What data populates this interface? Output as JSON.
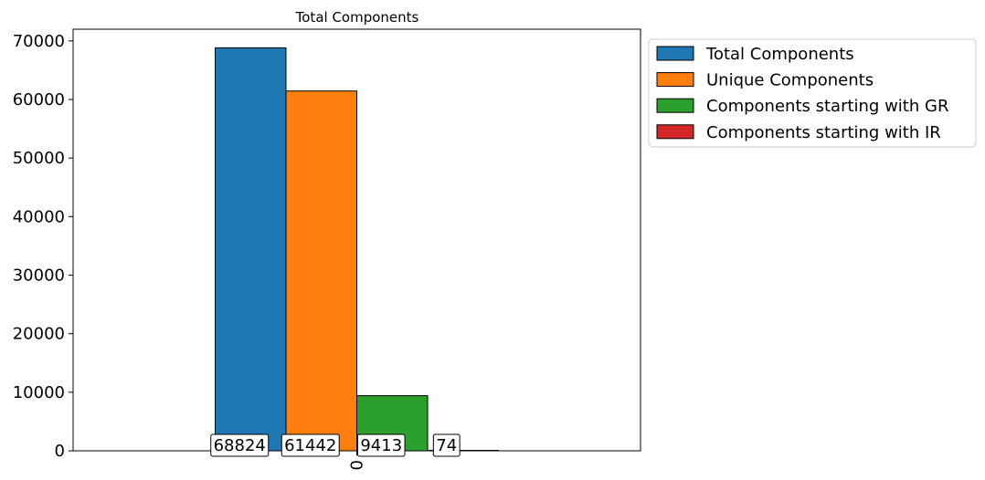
{
  "chart_data": {
    "type": "bar",
    "title": "Total Components",
    "xlabel": "",
    "ylabel": "",
    "categories": [
      "0"
    ],
    "series": [
      {
        "name": "Total Components",
        "values": [
          68824
        ],
        "color": "#1f77b4"
      },
      {
        "name": "Unique Components",
        "values": [
          61442
        ],
        "color": "#ff7f0e"
      },
      {
        "name": "Components starting with GR",
        "values": [
          9413
        ],
        "color": "#2ca02c"
      },
      {
        "name": "Components starting with IR",
        "values": [
          74
        ],
        "color": "#d62728"
      }
    ],
    "ylim": [
      0,
      72000
    ],
    "yticks": [
      "0",
      "10000",
      "20000",
      "30000",
      "40000",
      "50000",
      "60000",
      "70000"
    ],
    "data_labels": [
      "68824",
      "61442",
      "9413",
      "74"
    ],
    "grid": false,
    "legend_position": "outside-top-right",
    "xtick_rotation": "vertical"
  }
}
